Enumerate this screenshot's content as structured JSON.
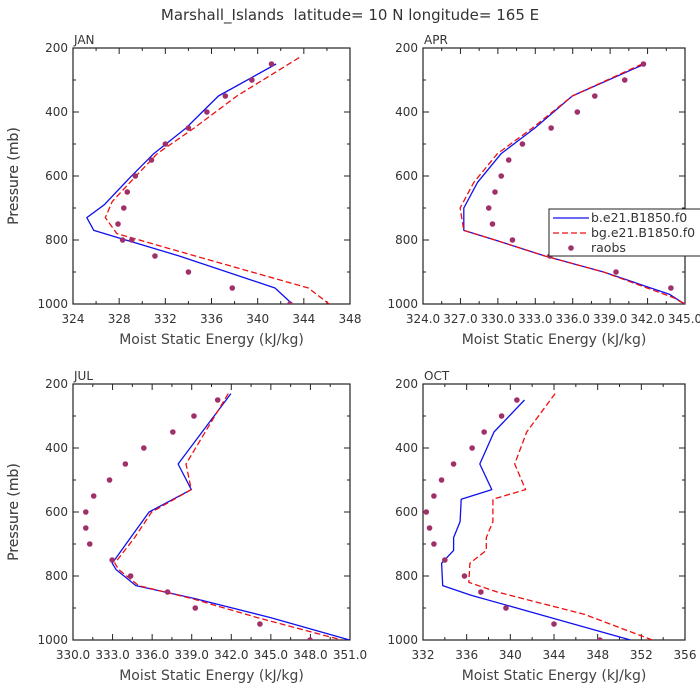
{
  "title": "Marshall_Islands  latitude= 10 N longitude= 165 E",
  "legend": {
    "entries": [
      {
        "label": "b.e21.B1850.f0",
        "style": "solid",
        "color": "#1010ee"
      },
      {
        "label": "bg.e21.B1850.f0",
        "style": "dashed",
        "color": "#ee1010"
      },
      {
        "label": "raobs",
        "style": "dots",
        "color": "#a0306a"
      }
    ]
  },
  "colors": {
    "model": "#1010ee",
    "gmodel": "#ee1010",
    "obs": "#a0306a"
  },
  "chart_data": [
    {
      "type": "line",
      "month": "JAN",
      "xlabel": "Moist Static Energy (kJ/kg)",
      "ylabel": "Pressure (mb)",
      "xlim": [
        324,
        348
      ],
      "ylim": [
        1000,
        200
      ],
      "xticks": [
        324,
        328,
        332,
        336,
        340,
        344,
        348
      ],
      "xtick_labels": [
        "324",
        "328",
        "332",
        "336",
        "340",
        "344",
        "348"
      ],
      "yticks": [
        200,
        400,
        600,
        800,
        1000
      ],
      "series": [
        {
          "name": "b.e21.B1850.f0",
          "style": "solid",
          "x": [
            341.6,
            336.6,
            333.8,
            331.0,
            328.8,
            326.7,
            325.2,
            325.8,
            333.2,
            341.5,
            343.0
          ],
          "y": [
            250,
            350,
            450,
            530,
            610,
            690,
            730,
            770,
            850,
            950,
            1000
          ]
        },
        {
          "name": "bg.e21.B1850.f0",
          "style": "dashed",
          "x": [
            343.6,
            338.2,
            334.5,
            331.3,
            329.2,
            327.4,
            326.8,
            327.8,
            334.6,
            344.4,
            346.2
          ],
          "y": [
            230,
            350,
            450,
            530,
            610,
            680,
            730,
            780,
            850,
            950,
            1000
          ]
        },
        {
          "name": "raobs",
          "style": "dots",
          "x": [
            341.2,
            339.5,
            337.2,
            335.6,
            334.0,
            332.0,
            330.8,
            329.4,
            328.7,
            328.4,
            327.9,
            328.3,
            329.1,
            331.1,
            334.0,
            337.8,
            342.8
          ],
          "y": [
            250,
            300,
            350,
            400,
            450,
            500,
            550,
            600,
            650,
            700,
            750,
            800,
            800,
            850,
            900,
            950,
            1000
          ]
        }
      ]
    },
    {
      "type": "line",
      "month": "APR",
      "xlabel": "Moist Static Energy (kJ/kg)",
      "ylabel": "Pressure (mb)",
      "xlim": [
        324.03,
        345.03
      ],
      "ylim": [
        1000,
        200
      ],
      "xticks": [
        324.03,
        327.03,
        330.03,
        333.03,
        336.03,
        339.03,
        342.03,
        345.03
      ],
      "xtick_labels": [
        "324.0",
        "327.0",
        "330.0",
        "333.0",
        "336.0",
        "339.0",
        "342.0",
        "345.0"
      ],
      "yticks": [
        200,
        400,
        600,
        800,
        1000
      ],
      "series": [
        {
          "name": "b.e21.B1850.f0",
          "style": "solid",
          "x": [
            341.8,
            336.0,
            333.0,
            330.3,
            328.4,
            327.3,
            327.3,
            329.8,
            333.8,
            338.5,
            343.8,
            345.0
          ],
          "y": [
            250,
            350,
            450,
            530,
            620,
            700,
            770,
            800,
            850,
            900,
            970,
            1000
          ]
        },
        {
          "name": "bg.e21.B1850.f0",
          "style": "dashed",
          "x": [
            341.6,
            336.0,
            332.8,
            330.0,
            328.1,
            327.0,
            327.3,
            329.8,
            333.8,
            338.5,
            344.1,
            345.0
          ],
          "y": [
            250,
            350,
            450,
            530,
            620,
            700,
            770,
            800,
            850,
            900,
            980,
            1000
          ]
        },
        {
          "name": "raobs",
          "style": "dots",
          "x": [
            341.7,
            340.2,
            337.8,
            336.4,
            334.3,
            332.0,
            330.9,
            330.3,
            329.8,
            329.3,
            329.6,
            331.2,
            334.2,
            339.5,
            343.9,
            345.1
          ],
          "y": [
            250,
            300,
            350,
            400,
            450,
            500,
            550,
            600,
            650,
            700,
            750,
            800,
            850,
            900,
            950,
            1000
          ]
        }
      ]
    },
    {
      "type": "line",
      "month": "JUL",
      "xlabel": "Moist Static Energy (kJ/kg)",
      "ylabel": "Pressure (mb)",
      "xlim": [
        330.03,
        351.03
      ],
      "ylim": [
        1000,
        200
      ],
      "xticks": [
        330.03,
        333.03,
        336.03,
        339.03,
        342.03,
        345.03,
        348.03,
        351.03
      ],
      "xtick_labels": [
        "330.0",
        "333.0",
        "336.0",
        "339.0",
        "342.0",
        "345.0",
        "348.0",
        "351.0"
      ],
      "yticks": [
        200,
        400,
        600,
        800,
        1000
      ],
      "series": [
        {
          "name": "b.e21.B1850.f0",
          "style": "solid",
          "x": [
            342.0,
            338.0,
            339.0,
            335.8,
            334.4,
            333.0,
            333.3,
            334.8,
            339.2,
            345.0,
            351.0
          ],
          "y": [
            230,
            450,
            530,
            600,
            680,
            760,
            780,
            830,
            870,
            930,
            1000
          ]
        },
        {
          "name": "bg.e21.B1850.f0",
          "style": "dashed",
          "x": [
            341.8,
            338.6,
            339.0,
            336.0,
            334.7,
            333.2,
            333.5,
            335.0,
            339.0,
            344.0,
            350.4
          ],
          "y": [
            230,
            450,
            530,
            600,
            680,
            760,
            780,
            830,
            870,
            930,
            1000
          ]
        },
        {
          "name": "raobs",
          "style": "dots",
          "x": [
            341.0,
            339.2,
            337.6,
            335.4,
            334.0,
            332.8,
            331.6,
            331.0,
            331.0,
            331.3,
            333.0,
            334.4,
            337.2,
            339.3,
            344.2,
            348.0
          ],
          "y": [
            250,
            300,
            350,
            400,
            450,
            500,
            550,
            600,
            650,
            700,
            750,
            800,
            850,
            900,
            950,
            1000
          ]
        }
      ]
    },
    {
      "type": "line",
      "month": "OCT",
      "xlabel": "Moist Static Energy (kJ/kg)",
      "ylabel": "Pressure (mb)",
      "xlim": [
        332,
        356
      ],
      "ylim": [
        1000,
        200
      ],
      "xticks": [
        332,
        336,
        340,
        344,
        348,
        352,
        356
      ],
      "xtick_labels": [
        "332",
        "336",
        "340",
        "344",
        "348",
        "352",
        "356"
      ],
      "yticks": [
        200,
        400,
        600,
        800,
        1000
      ],
      "series": [
        {
          "name": "b.e21.B1850.f0",
          "style": "solid",
          "x": [
            341.3,
            338.5,
            337.2,
            338.3,
            335.5,
            335.4,
            334.8,
            334.8,
            333.7,
            333.8,
            336.4,
            343.7,
            351.0
          ],
          "y": [
            250,
            350,
            450,
            530,
            560,
            630,
            680,
            720,
            760,
            830,
            860,
            930,
            1000
          ]
        },
        {
          "name": "bg.e21.B1850.f0",
          "style": "dashed",
          "x": [
            344.1,
            341.5,
            340.4,
            341.4,
            338.4,
            338.4,
            337.8,
            337.8,
            336.3,
            336.2,
            338.8,
            346.8,
            353.0
          ],
          "y": [
            230,
            350,
            450,
            530,
            560,
            630,
            680,
            720,
            760,
            820,
            850,
            920,
            1000
          ]
        },
        {
          "name": "raobs",
          "style": "dots",
          "x": [
            340.6,
            339.2,
            337.6,
            336.5,
            334.8,
            333.7,
            333.0,
            332.3,
            332.6,
            333.0,
            334.0,
            335.8,
            337.3,
            339.6,
            344.0,
            348.2
          ],
          "y": [
            250,
            300,
            350,
            400,
            450,
            500,
            550,
            600,
            650,
            700,
            750,
            800,
            850,
            900,
            950,
            1000
          ]
        }
      ]
    }
  ]
}
